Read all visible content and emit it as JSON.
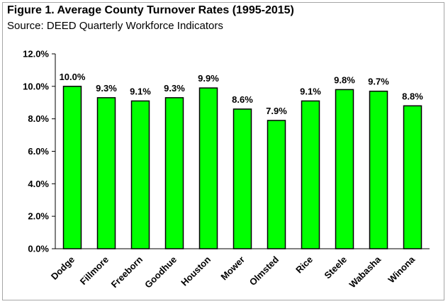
{
  "title": "Figure 1. Average County Turnover Rates (1995-2015)",
  "subtitle": "Source: DEED Quarterly Workforce Indicators",
  "colors": {
    "bar_fill": "#00ff00",
    "bar_stroke": "#000000",
    "axis": "#000000"
  },
  "chart_data": {
    "type": "bar",
    "categories": [
      "Dodge",
      "Fillmore",
      "Freeborn",
      "Goodhue",
      "Houston",
      "Mower",
      "Olmsted",
      "Rice",
      "Steele",
      "Wabasha",
      "Winona"
    ],
    "values": [
      10.0,
      9.3,
      9.1,
      9.3,
      9.9,
      8.6,
      7.9,
      9.1,
      9.8,
      9.7,
      8.8
    ],
    "data_labels": [
      "10.0%",
      "9.3%",
      "9.1%",
      "9.3%",
      "9.9%",
      "8.6%",
      "7.9%",
      "9.1%",
      "9.8%",
      "9.7%",
      "8.8%"
    ],
    "ylim": [
      0,
      12
    ],
    "yticks": [
      0,
      2,
      4,
      6,
      8,
      10,
      12
    ],
    "ytick_labels": [
      "0.0%",
      "2.0%",
      "4.0%",
      "6.0%",
      "8.0%",
      "10.0%",
      "12.0%"
    ],
    "grid": false,
    "legend": "none",
    "xlabel": "",
    "ylabel": ""
  }
}
